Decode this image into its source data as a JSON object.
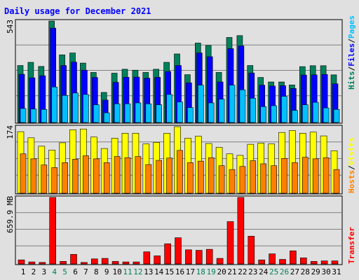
{
  "title": "Daily usage for December 2021",
  "colors": {
    "background": "#e0e0e0",
    "title": "#0000ff",
    "hits": "#00805c",
    "files": "#0000ff",
    "pages": "#00c0ff",
    "hosts": "#ff8000",
    "visits": "#ffff00",
    "transfer": "#ff0000",
    "weekend": "#00805c",
    "day_label": "#000000"
  },
  "chart_data": [
    {
      "type": "bar",
      "panel": "hits-files-pages",
      "title": "Daily usage for December 2021",
      "categories": [
        "1",
        "2",
        "3",
        "4",
        "5",
        "6",
        "7",
        "8",
        "9",
        "10",
        "11",
        "12",
        "13",
        "14",
        "15",
        "16",
        "17",
        "18",
        "19",
        "20",
        "21",
        "22",
        "23",
        "24",
        "25",
        "26",
        "27",
        "28",
        "29",
        "30",
        "31"
      ],
      "ymax_label": "543",
      "ylim": [
        0,
        543
      ],
      "series": [
        {
          "name": "Hits",
          "values": [
            305,
            322,
            300,
            543,
            362,
            372,
            318,
            268,
            161,
            264,
            285,
            280,
            268,
            285,
            322,
            367,
            256,
            425,
            412,
            268,
            455,
            465,
            305,
            241,
            217,
            217,
            201,
            299,
            304,
            304,
            255
          ]
        },
        {
          "name": "Files",
          "values": [
            258,
            239,
            250,
            505,
            305,
            323,
            280,
            241,
            120,
            215,
            242,
            243,
            237,
            242,
            273,
            305,
            212,
            372,
            352,
            217,
            395,
            410,
            265,
            200,
            195,
            197,
            182,
            254,
            255,
            257,
            207
          ]
        },
        {
          "name": "Pages",
          "values": [
            75,
            72,
            70,
            190,
            145,
            158,
            150,
            95,
            52,
            100,
            100,
            105,
            100,
            95,
            150,
            110,
            80,
            200,
            105,
            125,
            200,
            175,
            130,
            85,
            90,
            140,
            65,
            95,
            108,
            78,
            70
          ]
        }
      ],
      "legend": [
        "Hits",
        "Files",
        "Pages"
      ],
      "legend_placement": "right"
    },
    {
      "type": "bar",
      "panel": "hosts-visits",
      "categories": [
        "1",
        "2",
        "3",
        "4",
        "5",
        "6",
        "7",
        "8",
        "9",
        "10",
        "11",
        "12",
        "13",
        "14",
        "15",
        "16",
        "17",
        "18",
        "19",
        "20",
        "21",
        "22",
        "23",
        "24",
        "25",
        "26",
        "27",
        "28",
        "29",
        "30",
        "31"
      ],
      "ymax_label": "174",
      "ylim": [
        0,
        174
      ],
      "series": [
        {
          "name": "Visits",
          "values": [
            161,
            145,
            123,
            113,
            132,
            166,
            168,
            147,
            117,
            144,
            157,
            157,
            129,
            133,
            157,
            174,
            144,
            149,
            130,
            120,
            103,
            99,
            128,
            131,
            129,
            159,
            164,
            157,
            160,
            150,
            111
          ]
        },
        {
          "name": "Hosts",
          "values": [
            103,
            90,
            74,
            67,
            80,
            89,
            98,
            90,
            80,
            96,
            93,
            96,
            75,
            86,
            92,
            112,
            80,
            84,
            93,
            72,
            62,
            70,
            85,
            77,
            72,
            91,
            80,
            94,
            90,
            93,
            62
          ]
        }
      ],
      "legend": [
        "Hosts",
        "Visits"
      ],
      "legend_placement": "right"
    },
    {
      "type": "bar",
      "panel": "transfer",
      "categories": [
        "1",
        "2",
        "3",
        "4",
        "5",
        "6",
        "7",
        "8",
        "9",
        "10",
        "11",
        "12",
        "13",
        "14",
        "15",
        "16",
        "17",
        "18",
        "19",
        "20",
        "21",
        "22",
        "23",
        "24",
        "25",
        "26",
        "27",
        "28",
        "29",
        "30",
        "31"
      ],
      "ymax_label": "659.9 MB",
      "ylim": [
        0,
        659.9
      ],
      "series": [
        {
          "name": "Transfer",
          "values": [
            40,
            20,
            15,
            659.9,
            25,
            95,
            15,
            50,
            55,
            25,
            20,
            20,
            120,
            80,
            200,
            260,
            140,
            135,
            145,
            55,
            420,
            659.9,
            275,
            40,
            100,
            45,
            130,
            60,
            25,
            30,
            30
          ]
        }
      ],
      "legend": [
        "Transfer"
      ],
      "legend_placement": "right"
    }
  ],
  "weekend_days": [
    4,
    5,
    11,
    12,
    18,
    19,
    25,
    26
  ]
}
